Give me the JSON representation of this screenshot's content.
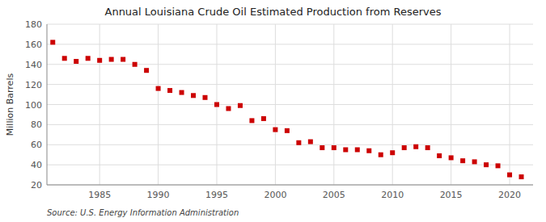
{
  "chart_data": {
    "type": "scatter",
    "title": "Annual Louisiana Crude Oil Estimated Production from Reserves",
    "ylabel": "Million Barrels",
    "annotations": [
      "Source: U.S. Energy Information Administration"
    ],
    "x": [
      1981,
      1982,
      1983,
      1984,
      1985,
      1986,
      1987,
      1988,
      1989,
      1990,
      1991,
      1992,
      1993,
      1994,
      1995,
      1996,
      1997,
      1998,
      1999,
      2000,
      2001,
      2002,
      2003,
      2004,
      2005,
      2006,
      2007,
      2008,
      2009,
      2010,
      2011,
      2012,
      2013,
      2014,
      2015,
      2016,
      2017,
      2018,
      2019,
      2020,
      2021
    ],
    "values": [
      162,
      146,
      143,
      146,
      144,
      145,
      145,
      140,
      134,
      116,
      114,
      112,
      109,
      107,
      100,
      96,
      99,
      84,
      86,
      75,
      74,
      62,
      63,
      57,
      57,
      55,
      55,
      54,
      50,
      52,
      57,
      58,
      57,
      49,
      47,
      44,
      43,
      40,
      39,
      30,
      28
    ],
    "color": "#cc0000",
    "marker": "square",
    "xlim": [
      1980.5,
      2022
    ],
    "xticks": [
      1985,
      1990,
      1995,
      2000,
      2005,
      2010,
      2015,
      2020
    ],
    "ylim": [
      20,
      180
    ],
    "yticks": [
      20,
      40,
      60,
      80,
      100,
      120,
      140,
      160,
      180
    ],
    "grid": true
  }
}
